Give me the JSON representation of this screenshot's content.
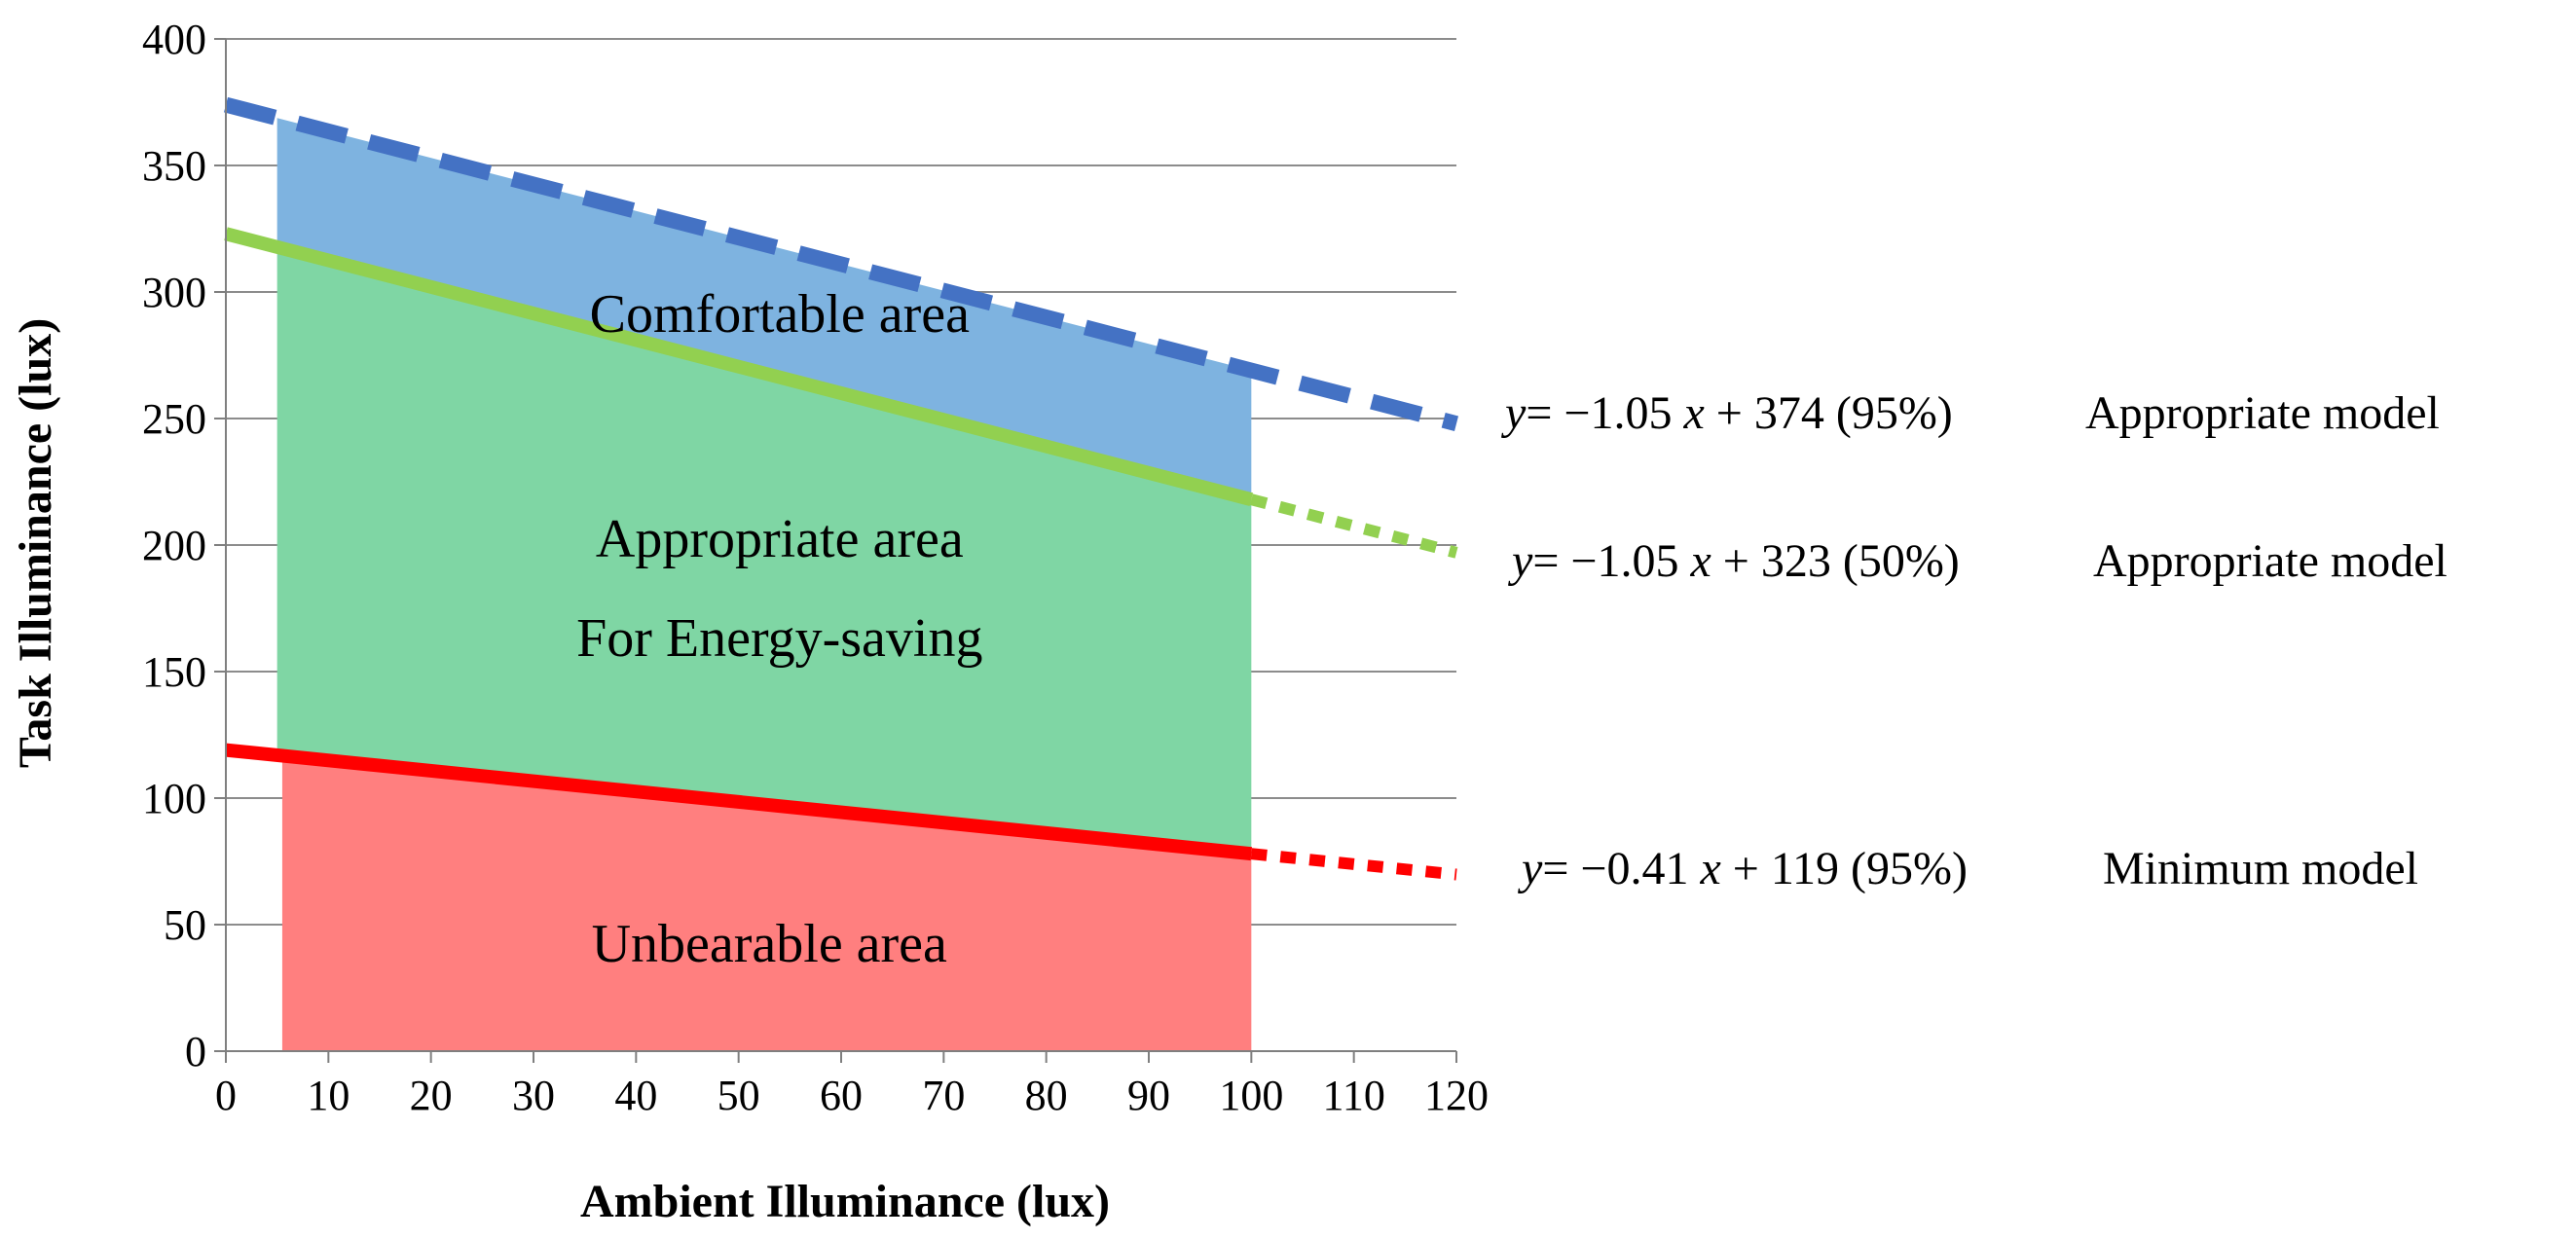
{
  "chart_data": {
    "type": "area",
    "title": "",
    "xlabel": "Ambient Illuminance (lux)",
    "ylabel": "Task Illuminance (lux)",
    "xlim": [
      0,
      120
    ],
    "ylim": [
      0,
      400
    ],
    "x_ticks": [
      "0",
      "10",
      "20",
      "30",
      "40",
      "50",
      "60",
      "70",
      "80",
      "90",
      "100",
      "110",
      "120"
    ],
    "y_ticks": [
      "0",
      "50",
      "100",
      "150",
      "200",
      "250",
      "300",
      "350",
      "400"
    ],
    "grid": "horizontal",
    "areas": [
      {
        "name": "Comfortable area",
        "color": "#7EB3E0",
        "x_range": [
          5,
          100
        ],
        "lower": {
          "slope": -1.05,
          "intercept": 323
        },
        "upper": {
          "slope": -1.05,
          "intercept": 374
        }
      },
      {
        "name": "Appropriate area",
        "color": "#7FD6A4",
        "x_range": [
          5,
          100
        ],
        "lower": {
          "slope": -0.41,
          "intercept": 119
        },
        "upper": {
          "slope": -1.05,
          "intercept": 323
        }
      },
      {
        "name": "Unbearable area",
        "color": "#FF7F7F",
        "x_range": [
          5.5,
          100
        ],
        "lower": {
          "slope": 0,
          "intercept": 0
        },
        "upper": {
          "slope": -0.41,
          "intercept": 119
        }
      }
    ],
    "area_labels": [
      {
        "id": "comfortable",
        "lines": [
          "Comfortable area"
        ],
        "at": [
          54,
          292
        ]
      },
      {
        "id": "appropriate",
        "lines": [
          "Appropriate area",
          "For Energy-saving"
        ],
        "at": [
          54,
          203
        ]
      },
      {
        "id": "unbearable",
        "lines": [
          "Unbearable area"
        ],
        "at": [
          53,
          43
        ]
      }
    ],
    "series": [
      {
        "name": "Appropriate model (95%)",
        "slope": -1.05,
        "intercept": 374,
        "x_range": [
          0,
          120
        ],
        "color": "#4472C4",
        "style": "dashed",
        "equation": {
          "y_var": "y",
          "lhs_tail": "= −1.05 ",
          "x_var": "x",
          "rhs": " + 374 (95%)"
        },
        "model_label": "Appropriate model"
      },
      {
        "name": "Appropriate model (50%)",
        "slope": -1.05,
        "intercept": 323,
        "x_range": [
          0,
          120
        ],
        "solid_until": 100,
        "color": "#92D050",
        "style": "solid-then-dotted",
        "equation": {
          "y_var": "y",
          "lhs_tail": "= −1.05 ",
          "x_var": "x",
          "rhs": " + 323 (50%)"
        },
        "model_label": "Appropriate model"
      },
      {
        "name": "Minimum model (95%)",
        "slope": -0.41,
        "intercept": 119,
        "x_range": [
          0,
          120
        ],
        "solid_until": 100,
        "color": "#FF0000",
        "style": "solid-then-dotted",
        "equation": {
          "y_var": "y",
          "lhs_tail": "= −0.41 ",
          "x_var": "x",
          "rhs": " + 119 (95%)"
        },
        "model_label": "Minimum model"
      }
    ]
  }
}
